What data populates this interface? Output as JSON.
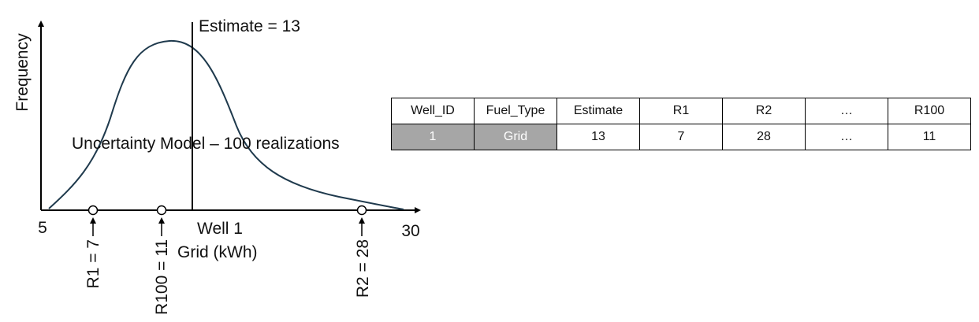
{
  "figure": {
    "y_axis_label": "Frequency",
    "estimate_label": "Estimate = 13",
    "model_label": "Uncertainty Model – 100 realizations",
    "x_min_label": "5",
    "x_max_label": "30",
    "well_label": "Well 1",
    "unit_label": "Grid (kWh)",
    "realization_labels": [
      "R1 = 7",
      "R100 = 11",
      "R2 = 28"
    ],
    "curve_color": "#1f3a4d"
  },
  "table": {
    "headers": [
      "Well_ID",
      "Fuel_Type",
      "Estimate",
      "R1",
      "R2",
      "…",
      "R100"
    ],
    "row": [
      "1",
      "Grid",
      "13",
      "7",
      "28",
      "…",
      "11"
    ],
    "shaded_color": "#a6a6a6"
  }
}
